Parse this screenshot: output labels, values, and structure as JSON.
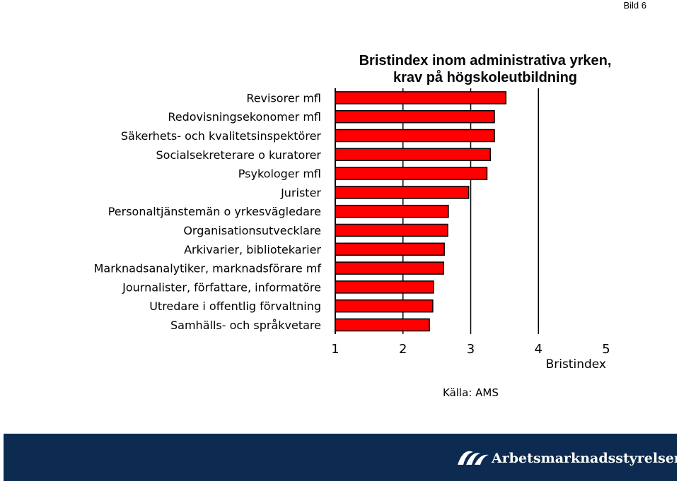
{
  "page": {
    "slide_label": "Bild 6",
    "source": "Källa: AMS"
  },
  "brand": {
    "name": "Arbetsmarknadsstyrelsen",
    "colors": {
      "band": "#0d2b50",
      "logo": "#ffffff"
    }
  },
  "chart_data": {
    "type": "bar",
    "orientation": "horizontal",
    "title": "Bristindex inom administrativa yrken, krav på högskoleutbildning",
    "xlabel": "Bristindex",
    "ylabel": "",
    "xlim": [
      1,
      5
    ],
    "xticks": [
      1,
      2,
      3,
      4,
      5
    ],
    "grid": "vertical lines at 2, 3, 4",
    "bar_color": "#ff0000",
    "categories": [
      "Revisorer mfl",
      "Redovisningsekonomer mfl",
      "Säkerhets- och kvalitetsinspektörer",
      "Socialsekreterare o kuratorer",
      "Psykologer mfl",
      "Jurister",
      "Personaltjänstemän o yrkesvägledare",
      "Organisationsutvecklare",
      "Arkivarier, bibliotekarier",
      "Marknadsanalytiker, marknadsförare mf",
      "Journalister, författare, informatöre",
      "Utredare i offentlig förvaltning",
      "Samhälls- och språkvetare"
    ],
    "values": [
      3.52,
      3.35,
      3.35,
      3.29,
      3.24,
      2.97,
      2.67,
      2.66,
      2.61,
      2.6,
      2.45,
      2.44,
      2.39
    ]
  }
}
